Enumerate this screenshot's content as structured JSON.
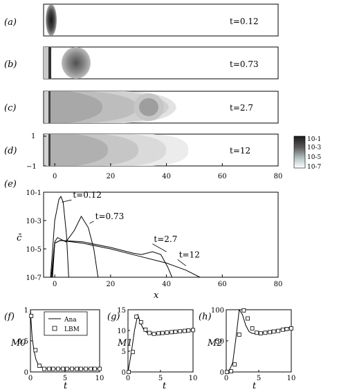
{
  "panels": [
    {
      "label": "(a)",
      "time": "t=0.12"
    },
    {
      "label": "(b)",
      "time": "t=0.73"
    },
    {
      "label": "(c)",
      "time": "t=2.7"
    },
    {
      "label": "(d)",
      "time": "t=12"
    }
  ],
  "field_axes": {
    "x_ticks": [
      "0",
      "20",
      "40",
      "60",
      "80"
    ],
    "y_ticks": [
      "1",
      "−1"
    ]
  },
  "colorbar": {
    "ticks": [
      "10-1",
      "10-3",
      "10-5",
      "10-7"
    ]
  },
  "chart_data": [
    {
      "type": "line",
      "panel_label": "(e)",
      "xlabel": "x",
      "ylabel": "c̄",
      "xlim": [
        -4,
        80
      ],
      "ylim_log10": [
        -7,
        -1
      ],
      "x_ticks": [
        "0",
        "20",
        "40",
        "60",
        "80"
      ],
      "y_ticks": [
        "10-1",
        "10-3",
        "10-5",
        "10-7"
      ],
      "series": [
        {
          "name": "t=0.12",
          "x": [
            -1.5,
            0,
            1.5,
            2.2,
            3,
            4.2,
            5
          ],
          "log10_y": [
            -7,
            -3,
            -1.5,
            -1.3,
            -1.7,
            -4,
            -7
          ]
        },
        {
          "name": "t=0.73",
          "x": [
            -1.3,
            0,
            1,
            4,
            7,
            9.5,
            12,
            14,
            15.5
          ],
          "log10_y": [
            -7,
            -4.5,
            -4.2,
            -4.5,
            -3.7,
            -2.7,
            -3.5,
            -5,
            -7
          ]
        },
        {
          "name": "t=2.7",
          "x": [
            -1,
            0,
            2,
            10,
            20,
            28,
            31,
            35,
            38,
            40.5,
            42
          ],
          "log10_y": [
            -7,
            -4.6,
            -4.4,
            -4.5,
            -4.9,
            -5.3,
            -5.4,
            -5.2,
            -5.4,
            -6.3,
            -7
          ]
        },
        {
          "name": "t=12",
          "x": [
            -0.8,
            0,
            2,
            10,
            20,
            30,
            40,
            47,
            52
          ],
          "log10_y": [
            -7,
            -4.6,
            -4.4,
            -4.6,
            -5.0,
            -5.5,
            -6.0,
            -6.5,
            -7
          ]
        }
      ]
    },
    {
      "type": "line",
      "panel_label": "(f)",
      "xlabel": "t",
      "ylabel": "M0",
      "xlim": [
        0,
        10
      ],
      "ylim": [
        0,
        1
      ],
      "x_ticks": [
        "0",
        "5",
        "10"
      ],
      "y_ticks": [
        "0",
        "0.5",
        "1"
      ],
      "legend": {
        "position": "top-right",
        "entries": [
          "Ana",
          "LBM"
        ]
      },
      "series": [
        {
          "name": "Ana",
          "x": [
            0,
            0.1,
            0.25,
            0.5,
            0.8,
            1.2,
            2,
            3,
            5,
            7,
            10
          ],
          "values": [
            1.0,
            0.8,
            0.55,
            0.35,
            0.2,
            0.1,
            0.06,
            0.05,
            0.05,
            0.05,
            0.05
          ]
        },
        {
          "name": "LBM",
          "x": [
            0.12,
            0.73,
            1.3,
            2.0,
            2.7,
            3.3,
            4,
            4.7,
            5.3,
            6,
            6.7,
            7.3,
            8,
            8.7,
            9.3,
            10
          ],
          "values": [
            0.9,
            0.35,
            0.1,
            0.05,
            0.05,
            0.05,
            0.05,
            0.05,
            0.05,
            0.05,
            0.05,
            0.05,
            0.05,
            0.05,
            0.05,
            0.05
          ]
        }
      ]
    },
    {
      "type": "line",
      "panel_label": "(g)",
      "xlabel": "t",
      "ylabel": "M1",
      "xlim": [
        0,
        10
      ],
      "ylim": [
        0,
        15
      ],
      "x_ticks": [
        "0",
        "5",
        "10"
      ],
      "y_ticks": [
        "0",
        "5",
        "10",
        "15"
      ],
      "series": [
        {
          "name": "Ana",
          "x": [
            0,
            0.5,
            1,
            1.5,
            2,
            2.5,
            3,
            3.5,
            4,
            5,
            6,
            7,
            8,
            9,
            10
          ],
          "values": [
            0,
            4.5,
            10,
            13.8,
            11.5,
            10,
            9.4,
            9.2,
            9.2,
            9.3,
            9.4,
            9.6,
            9.8,
            10,
            10.2
          ]
        },
        {
          "name": "LBM",
          "x": [
            0.12,
            0.73,
            1.3,
            2.0,
            2.7,
            3.3,
            4,
            4.7,
            5.3,
            6,
            6.7,
            7.3,
            8,
            8.7,
            9.3,
            10
          ],
          "values": [
            0,
            4.8,
            13.3,
            12,
            10.2,
            9.4,
            9.2,
            9.3,
            9.4,
            9.5,
            9.6,
            9.7,
            9.8,
            9.9,
            10,
            10.1
          ]
        }
      ]
    },
    {
      "type": "line",
      "panel_label": "(h)",
      "xlabel": "t",
      "ylabel": "M2",
      "xlim": [
        0,
        10
      ],
      "ylim": [
        0,
        100
      ],
      "x_ticks": [
        "0",
        "5",
        "10"
      ],
      "y_ticks": [
        "0",
        "50",
        "100"
      ],
      "series": [
        {
          "name": "Ana",
          "x": [
            0,
            0.5,
            1,
            1.5,
            2,
            2.5,
            3,
            3.5,
            4,
            5,
            6,
            7,
            8,
            9,
            10
          ],
          "values": [
            0,
            3,
            15,
            55,
            100,
            92,
            75,
            65,
            62,
            62,
            64,
            66,
            68,
            70,
            72
          ]
        },
        {
          "name": "LBM",
          "x": [
            0.12,
            0.73,
            1.3,
            2.0,
            2.7,
            3.3,
            4,
            4.7,
            5.3,
            6,
            6.7,
            7.3,
            8,
            8.7,
            9.3,
            10
          ],
          "values": [
            0,
            1,
            12,
            60,
            99,
            86,
            70,
            63,
            62,
            63,
            64,
            65,
            66,
            68,
            69,
            70
          ]
        }
      ]
    }
  ]
}
